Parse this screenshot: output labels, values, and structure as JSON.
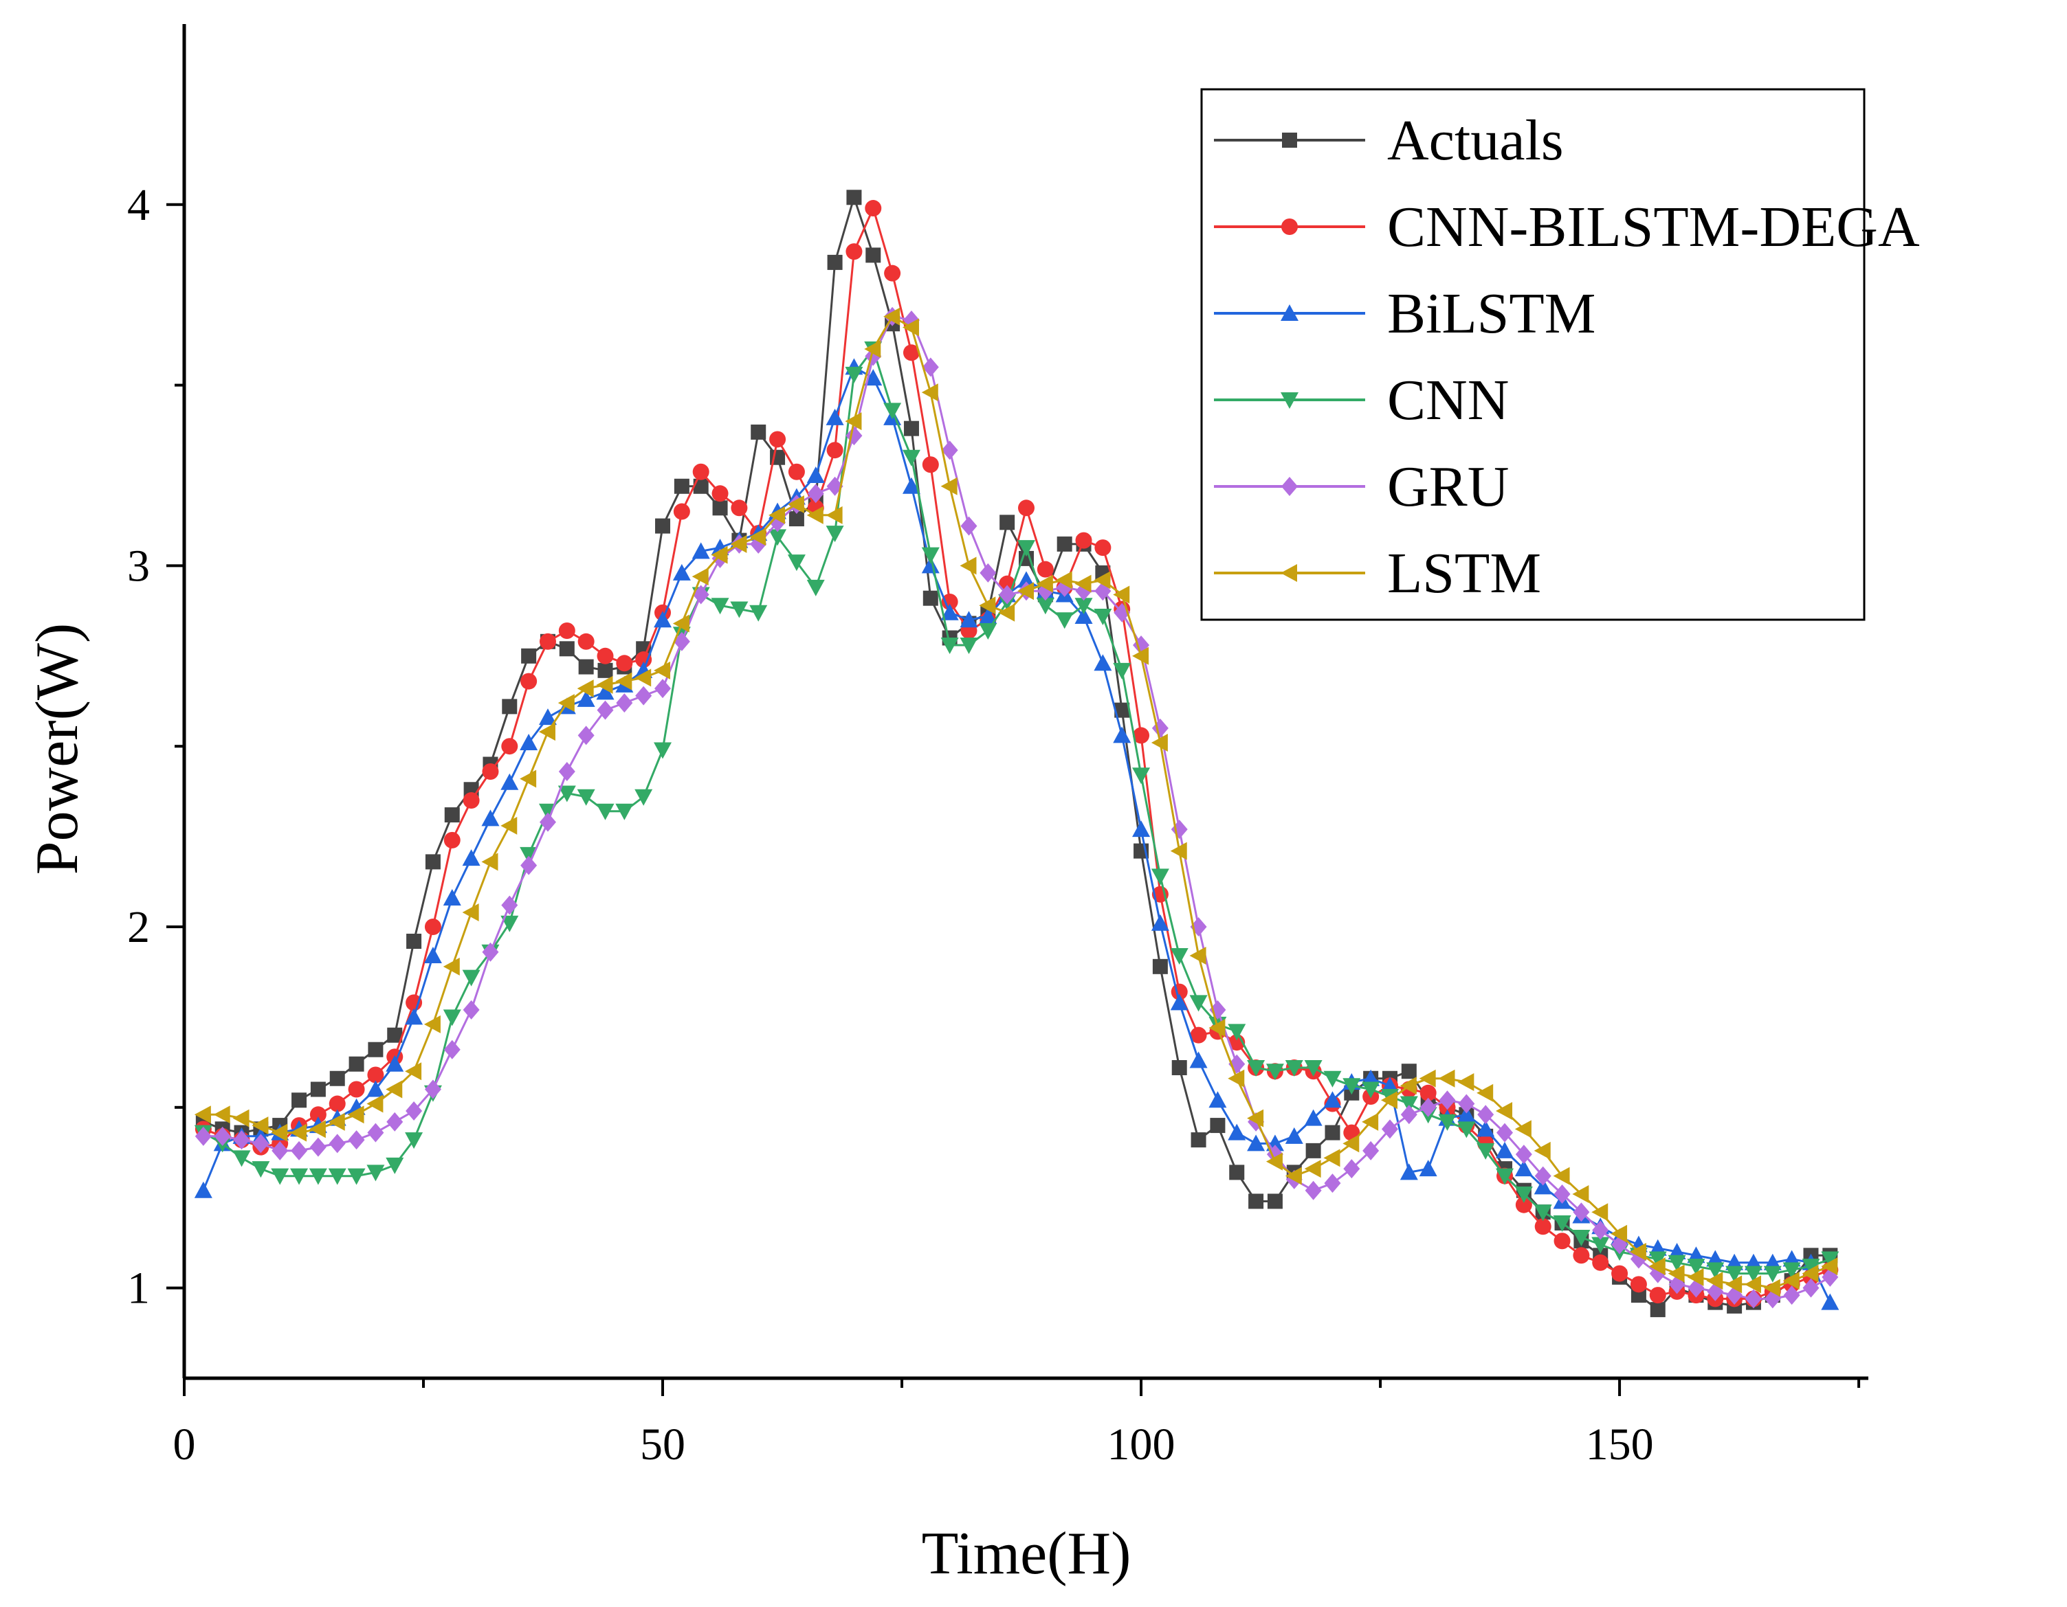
{
  "chart_data": {
    "type": "line",
    "title": "",
    "xlabel": "Time(H)",
    "ylabel": "Power(W)",
    "xlim": [
      0,
      176
    ],
    "ylim": [
      0.75,
      4.5
    ],
    "xticks": [
      0,
      50,
      100,
      150
    ],
    "xtick_labels": [
      "0",
      "50",
      "100",
      "150"
    ],
    "yticks": [
      1,
      2,
      3,
      4
    ],
    "ytick_labels": [
      "1",
      "2",
      "3",
      "4"
    ],
    "legend_position": "top-right",
    "x": [
      2,
      4,
      6,
      8,
      10,
      12,
      14,
      16,
      18,
      20,
      22,
      24,
      26,
      28,
      30,
      32,
      34,
      36,
      38,
      40,
      42,
      44,
      46,
      48,
      50,
      52,
      54,
      56,
      58,
      60,
      62,
      64,
      66,
      68,
      70,
      72,
      74,
      76,
      78,
      80,
      82,
      84,
      86,
      88,
      90,
      92,
      94,
      96,
      98,
      100,
      102,
      104,
      106,
      108,
      110,
      112,
      114,
      116,
      118,
      120,
      122,
      124,
      126,
      128,
      130,
      132,
      134,
      136,
      138,
      140,
      142,
      144,
      146,
      148,
      150,
      152,
      154,
      156,
      158,
      160,
      162,
      164,
      166,
      168,
      170,
      172
    ],
    "series": [
      {
        "name": "Actuals",
        "color": "#444444",
        "marker": "square",
        "values": [
          1.46,
          1.44,
          1.43,
          1.44,
          1.45,
          1.52,
          1.55,
          1.58,
          1.62,
          1.66,
          1.7,
          1.96,
          2.18,
          2.31,
          2.38,
          2.45,
          2.61,
          2.75,
          2.79,
          2.77,
          2.72,
          2.71,
          2.72,
          2.77,
          3.11,
          3.22,
          3.22,
          3.16,
          3.07,
          3.37,
          3.3,
          3.13,
          3.18,
          3.84,
          4.02,
          3.86,
          3.67,
          3.38,
          2.91,
          2.8,
          2.84,
          2.87,
          3.12,
          3.02,
          2.92,
          3.06,
          3.06,
          2.98,
          2.6,
          2.21,
          1.89,
          1.61,
          1.41,
          1.45,
          1.32,
          1.24,
          1.24,
          1.32,
          1.38,
          1.43,
          1.54,
          1.58,
          1.58,
          1.6,
          1.52,
          1.5,
          1.48,
          1.42,
          1.33,
          1.27,
          1.21,
          1.18,
          1.13,
          1.09,
          1.03,
          0.98,
          0.94,
          1.0,
          0.98,
          0.96,
          0.95,
          0.96,
          0.98,
          1.02,
          1.09,
          1.09
        ]
      },
      {
        "name": "CNN-BILSTM-DEGA",
        "color": "#ee3333",
        "marker": "circle",
        "values": [
          1.44,
          1.42,
          1.41,
          1.39,
          1.4,
          1.45,
          1.48,
          1.51,
          1.55,
          1.59,
          1.64,
          1.79,
          2.0,
          2.24,
          2.35,
          2.43,
          2.5,
          2.68,
          2.79,
          2.82,
          2.79,
          2.75,
          2.73,
          2.74,
          2.87,
          3.15,
          3.26,
          3.2,
          3.16,
          3.09,
          3.35,
          3.26,
          3.16,
          3.32,
          3.87,
          3.99,
          3.81,
          3.59,
          3.28,
          2.9,
          2.82,
          2.85,
          2.95,
          3.16,
          2.99,
          2.94,
          3.07,
          3.05,
          2.88,
          2.53,
          2.09,
          1.82,
          1.7,
          1.71,
          1.68,
          1.61,
          1.6,
          1.61,
          1.6,
          1.51,
          1.43,
          1.53,
          1.56,
          1.55,
          1.54,
          1.5,
          1.45,
          1.4,
          1.31,
          1.23,
          1.17,
          1.13,
          1.09,
          1.07,
          1.04,
          1.01,
          0.98,
          0.99,
          0.98,
          0.97,
          0.97,
          0.97,
          0.99,
          1.01,
          1.03,
          1.05
        ]
      },
      {
        "name": "BiLSTM",
        "color": "#2266dd",
        "marker": "triangle-up",
        "values": [
          1.27,
          1.4,
          1.42,
          1.42,
          1.43,
          1.44,
          1.45,
          1.47,
          1.5,
          1.55,
          1.62,
          1.75,
          1.92,
          2.08,
          2.19,
          2.3,
          2.4,
          2.51,
          2.58,
          2.61,
          2.63,
          2.65,
          2.67,
          2.71,
          2.85,
          2.98,
          3.04,
          3.05,
          3.07,
          3.09,
          3.15,
          3.19,
          3.25,
          3.41,
          3.55,
          3.52,
          3.41,
          3.22,
          3.0,
          2.87,
          2.85,
          2.86,
          2.92,
          2.96,
          2.93,
          2.92,
          2.86,
          2.73,
          2.53,
          2.27,
          2.01,
          1.79,
          1.63,
          1.52,
          1.43,
          1.4,
          1.4,
          1.42,
          1.47,
          1.52,
          1.57,
          1.58,
          1.56,
          1.32,
          1.33,
          1.47,
          1.48,
          1.44,
          1.38,
          1.33,
          1.28,
          1.24,
          1.2,
          1.17,
          1.14,
          1.12,
          1.11,
          1.1,
          1.09,
          1.08,
          1.07,
          1.07,
          1.07,
          1.08,
          1.07,
          0.96
        ]
      },
      {
        "name": "CNN",
        "color": "#33aa66",
        "marker": "triangle-down",
        "values": [
          1.43,
          1.4,
          1.36,
          1.33,
          1.31,
          1.31,
          1.31,
          1.31,
          1.31,
          1.32,
          1.34,
          1.41,
          1.54,
          1.75,
          1.86,
          1.93,
          2.01,
          2.2,
          2.32,
          2.37,
          2.36,
          2.32,
          2.32,
          2.36,
          2.49,
          2.81,
          2.92,
          2.89,
          2.88,
          2.87,
          3.08,
          3.01,
          2.94,
          3.09,
          3.53,
          3.6,
          3.43,
          3.3,
          3.03,
          2.78,
          2.78,
          2.82,
          2.9,
          3.05,
          2.89,
          2.85,
          2.89,
          2.86,
          2.71,
          2.42,
          2.14,
          1.92,
          1.79,
          1.73,
          1.71,
          1.61,
          1.6,
          1.61,
          1.61,
          1.58,
          1.56,
          1.55,
          1.53,
          1.51,
          1.48,
          1.46,
          1.44,
          1.38,
          1.31,
          1.26,
          1.21,
          1.18,
          1.14,
          1.12,
          1.1,
          1.09,
          1.08,
          1.07,
          1.06,
          1.05,
          1.04,
          1.04,
          1.04,
          1.05,
          1.06,
          1.08
        ]
      },
      {
        "name": "GRU",
        "color": "#b36ee0",
        "marker": "diamond",
        "values": [
          1.42,
          1.42,
          1.41,
          1.4,
          1.38,
          1.38,
          1.39,
          1.4,
          1.41,
          1.43,
          1.46,
          1.49,
          1.55,
          1.66,
          1.77,
          1.93,
          2.06,
          2.17,
          2.29,
          2.43,
          2.53,
          2.6,
          2.62,
          2.64,
          2.66,
          2.79,
          2.92,
          3.02,
          3.06,
          3.06,
          3.12,
          3.17,
          3.2,
          3.22,
          3.36,
          3.58,
          3.69,
          3.68,
          3.55,
          3.32,
          3.11,
          2.98,
          2.92,
          2.93,
          2.93,
          2.94,
          2.93,
          2.93,
          2.87,
          2.78,
          2.55,
          2.27,
          2.0,
          1.77,
          1.62,
          1.46,
          1.37,
          1.3,
          1.27,
          1.29,
          1.33,
          1.38,
          1.44,
          1.48,
          1.5,
          1.52,
          1.51,
          1.48,
          1.43,
          1.37,
          1.31,
          1.26,
          1.21,
          1.16,
          1.12,
          1.08,
          1.04,
          1.01,
          1.0,
          0.99,
          0.98,
          0.97,
          0.97,
          0.98,
          1.0,
          1.03
        ]
      },
      {
        "name": "LSTM",
        "color": "#c8a010",
        "marker": "triangle-left",
        "values": [
          1.48,
          1.48,
          1.47,
          1.45,
          1.43,
          1.43,
          1.44,
          1.46,
          1.48,
          1.51,
          1.55,
          1.6,
          1.73,
          1.89,
          2.04,
          2.18,
          2.28,
          2.41,
          2.54,
          2.62,
          2.66,
          2.67,
          2.68,
          2.69,
          2.71,
          2.84,
          2.97,
          3.03,
          3.06,
          3.08,
          3.14,
          3.17,
          3.14,
          3.14,
          3.4,
          3.6,
          3.69,
          3.66,
          3.48,
          3.22,
          3.0,
          2.89,
          2.87,
          2.93,
          2.95,
          2.96,
          2.95,
          2.96,
          2.92,
          2.75,
          2.51,
          2.21,
          1.92,
          1.72,
          1.58,
          1.47,
          1.35,
          1.31,
          1.33,
          1.36,
          1.4,
          1.46,
          1.52,
          1.56,
          1.58,
          1.58,
          1.57,
          1.54,
          1.49,
          1.44,
          1.38,
          1.31,
          1.26,
          1.21,
          1.15,
          1.1,
          1.06,
          1.04,
          1.03,
          1.02,
          1.01,
          1.01,
          1.0,
          1.02,
          1.04,
          1.06
        ]
      }
    ]
  }
}
